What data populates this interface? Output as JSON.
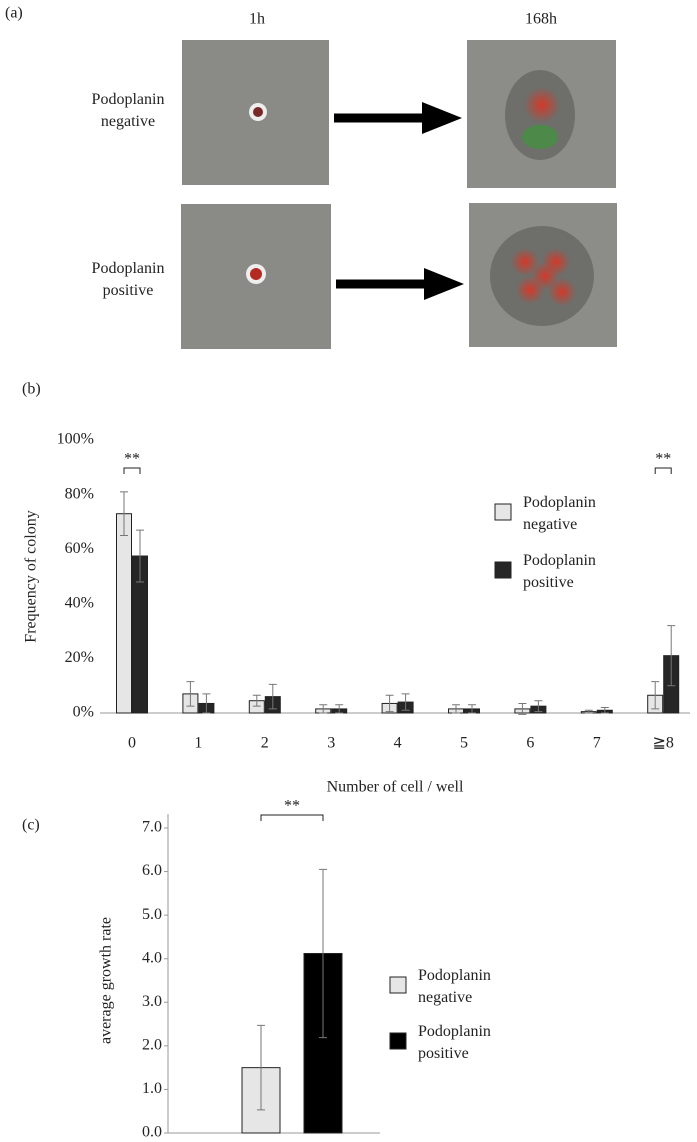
{
  "panel_a": {
    "label": "(a)",
    "columns": [
      "1h",
      "168h"
    ],
    "rows": [
      "Podoplanin negative",
      "Podoplanin positive"
    ]
  },
  "chart_data": [
    {
      "type": "bar",
      "label": "(b)",
      "y_label": "Frequency of colony",
      "x_label": "Number of cell / well",
      "categories": [
        "0",
        "1",
        "2",
        "3",
        "4",
        "5",
        "6",
        "7",
        "≧8"
      ],
      "series": [
        {
          "name": "Podoplanin negative",
          "color": "#e6e6e6",
          "values": [
            73,
            7,
            4.5,
            1.5,
            3.5,
            1.5,
            1.5,
            0.5,
            6.5
          ],
          "errors": [
            8,
            4.5,
            2,
            1.5,
            3,
            1.5,
            2,
            0.5,
            5
          ]
        },
        {
          "name": "Podoplanin positive",
          "color": "#262626",
          "values": [
            57.5,
            3.5,
            6,
            1.5,
            4,
            1.5,
            2.5,
            1,
            21
          ],
          "errors": [
            9.5,
            3.5,
            4.5,
            1.5,
            3,
            1.5,
            2,
            1,
            11
          ]
        }
      ],
      "ylim": [
        0,
        100
      ],
      "yticks": [
        {
          "value": 0,
          "label": "0%"
        },
        {
          "value": 20,
          "label": "20%"
        },
        {
          "value": 40,
          "label": "40%"
        },
        {
          "value": 60,
          "label": "60%"
        },
        {
          "value": 80,
          "label": "80%"
        },
        {
          "value": 100,
          "label": "100%"
        }
      ],
      "annotations": [
        {
          "text": "**",
          "category": "0"
        },
        {
          "text": "**",
          "category": "≧8"
        }
      ],
      "legend": "right"
    },
    {
      "type": "bar",
      "label": "(c)",
      "y_label": "average growth rate",
      "categories": [
        null
      ],
      "series": [
        {
          "name": "Podoplanin negative",
          "color": "#e6e6e6",
          "values": [
            1.5
          ],
          "errors": [
            0.97
          ]
        },
        {
          "name": "Podoplanin positive",
          "color": "#000000",
          "values": [
            4.12
          ],
          "errors": [
            1.93
          ]
        }
      ],
      "ylim": [
        0,
        7
      ],
      "yticks": [
        {
          "value": 0,
          "label": "0.0"
        },
        {
          "value": 1,
          "label": "1.0"
        },
        {
          "value": 2,
          "label": "2.0"
        },
        {
          "value": 3,
          "label": "3.0"
        },
        {
          "value": 4,
          "label": "4.0"
        },
        {
          "value": 5,
          "label": "5.0"
        },
        {
          "value": 6,
          "label": "6.0"
        },
        {
          "value": 7,
          "label": "7.0"
        }
      ],
      "annotations": [
        {
          "text": "**",
          "category": null
        }
      ],
      "legend": "right"
    }
  ]
}
